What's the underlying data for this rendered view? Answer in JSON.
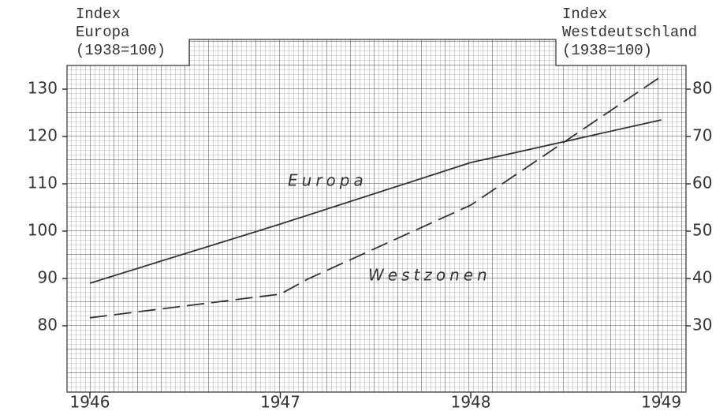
{
  "chart_data": {
    "type": "line",
    "y_label": [
      "Index",
      "Europa",
      "(1938=100)"
    ],
    "y2_label": [
      "Index",
      "Westdeutschland",
      "(1938=100)"
    ],
    "annotations": [
      "Europa",
      "Westzonen"
    ],
    "xlim": [
      1945.88,
      1949.13
    ],
    "xticks": [
      1946,
      1947,
      1948,
      1949
    ],
    "ylim": [
      66,
      135
    ],
    "yticks": [
      80,
      90,
      100,
      110,
      120,
      130
    ],
    "y2lim": [
      16,
      85
    ],
    "y2ticks": [
      30,
      40,
      50,
      60,
      70,
      80
    ],
    "series": [
      {
        "name": "Europa",
        "color": "#333333",
        "style": "solid",
        "x": [
          1946,
          1947,
          1948,
          1949
        ],
        "values": [
          89,
          101.5,
          114.5,
          123.5
        ]
      },
      {
        "name": "Westzonen",
        "color": "#333333",
        "style": "dashed",
        "axis": "y2",
        "x": [
          1946,
          1947,
          1947.15,
          1948,
          1949
        ],
        "values": [
          31.7,
          36.7,
          40,
          55.5,
          82.7
        ]
      }
    ]
  }
}
